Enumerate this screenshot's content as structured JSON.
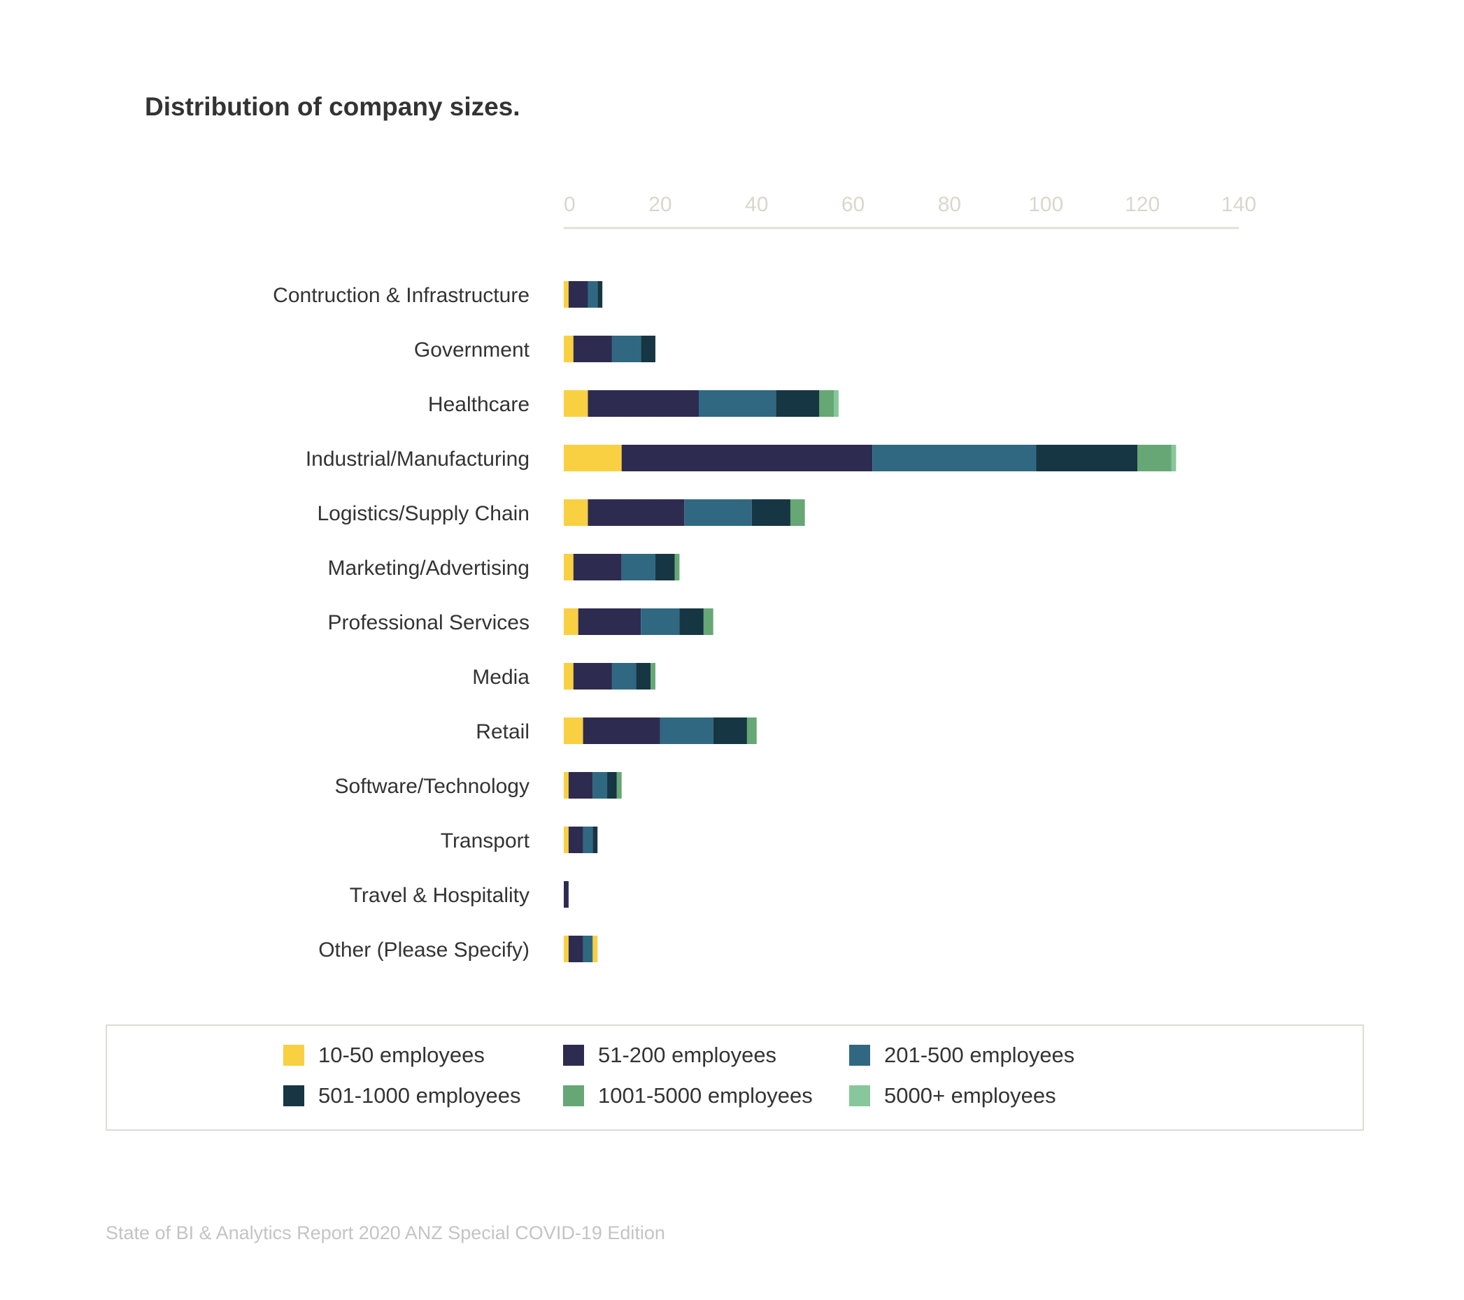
{
  "chart_data": {
    "type": "bar",
    "orientation": "horizontal",
    "stacked": true,
    "title": "Distribution of company sizes.",
    "xlabel": "",
    "ylabel": "",
    "xlim": [
      0,
      140
    ],
    "ticks": [
      0,
      20,
      40,
      60,
      80,
      100,
      120,
      140
    ],
    "grid": false,
    "legend_position": "bottom",
    "categories": [
      "Contruction & Infrastructure",
      "Government",
      "Healthcare",
      "Industrial/Manufacturing",
      "Logistics/Supply Chain",
      "Marketing/Advertising",
      "Professional Services",
      "Media",
      "Retail",
      "Software/Technology",
      "Transport",
      "Travel & Hospitality",
      "Other (Please Specify)"
    ],
    "series": [
      {
        "name": "10-50 employees",
        "color": "#f9d042",
        "values": [
          1,
          2,
          5,
          12,
          5,
          2,
          3,
          2,
          4,
          1,
          1,
          0,
          1
        ]
      },
      {
        "name": "51-200 employees",
        "color": "#2e2b51",
        "values": [
          4,
          8,
          23,
          52,
          20,
          10,
          13,
          8,
          16,
          5,
          3,
          1,
          3
        ]
      },
      {
        "name": "201-500 employees",
        "color": "#306882",
        "values": [
          2,
          6,
          16,
          34,
          14,
          7,
          8,
          5,
          11,
          3,
          2,
          0,
          2
        ]
      },
      {
        "name": "501-1000 employees",
        "color": "#163643",
        "values": [
          1,
          3,
          9,
          21,
          8,
          4,
          5,
          3,
          7,
          2,
          1,
          0,
          0
        ]
      },
      {
        "name": "1001-5000 employees",
        "color": "#66a775",
        "values": [
          0,
          0,
          3,
          7,
          3,
          1,
          2,
          1,
          2,
          1,
          0,
          0,
          0
        ]
      },
      {
        "name": "5000+ employees",
        "color": "#87c79b",
        "values": [
          0,
          0,
          1,
          1,
          0,
          0,
          0,
          0,
          0,
          0,
          0,
          0,
          0
        ]
      }
    ],
    "extra_segments": [
      {
        "category_index": 12,
        "series_index": 0,
        "value": 1,
        "note": "second 10-50 segment at end of bar"
      }
    ]
  },
  "footer": {
    "source": "State of BI & Analytics Report 2020 ANZ Special COVID-19 Edition"
  },
  "colors": {
    "axis": "#e2e0d6",
    "tick_text": "#d9d7cd",
    "label_text": "#333333",
    "legend_border": "#dedbd3"
  }
}
